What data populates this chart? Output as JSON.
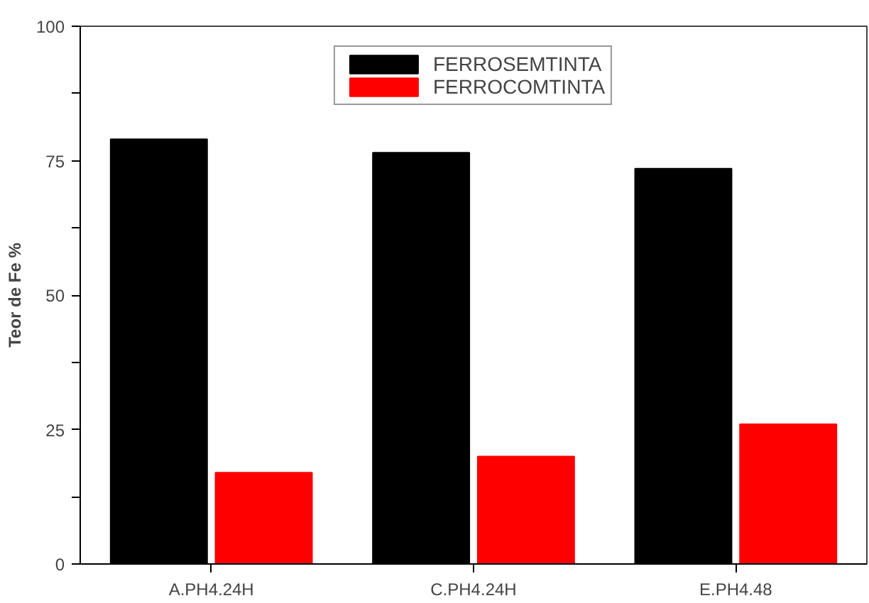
{
  "chart_data": {
    "type": "bar",
    "ylabel": "Teor de Fe %",
    "categories": [
      "A.PH4.24H",
      "C.PH4.24H",
      "E.PH4.48"
    ],
    "series": [
      {
        "name": "FERROSEMTINTA",
        "color": "#000000",
        "values": [
          79,
          76.5,
          73.5
        ]
      },
      {
        "name": "FERROCOMTINTA",
        "color": "#ff0000",
        "values": [
          17,
          20,
          26
        ]
      }
    ],
    "ylim": [
      0,
      100
    ],
    "yticks": [
      0,
      {
        "value": 12.5,
        "label": null
      },
      25,
      {
        "value": 37.5,
        "label": null
      },
      50,
      {
        "value": 62.5,
        "label": null
      },
      75,
      {
        "value": 87.5,
        "label": null
      },
      100
    ],
    "grid": false,
    "legend": "top"
  }
}
